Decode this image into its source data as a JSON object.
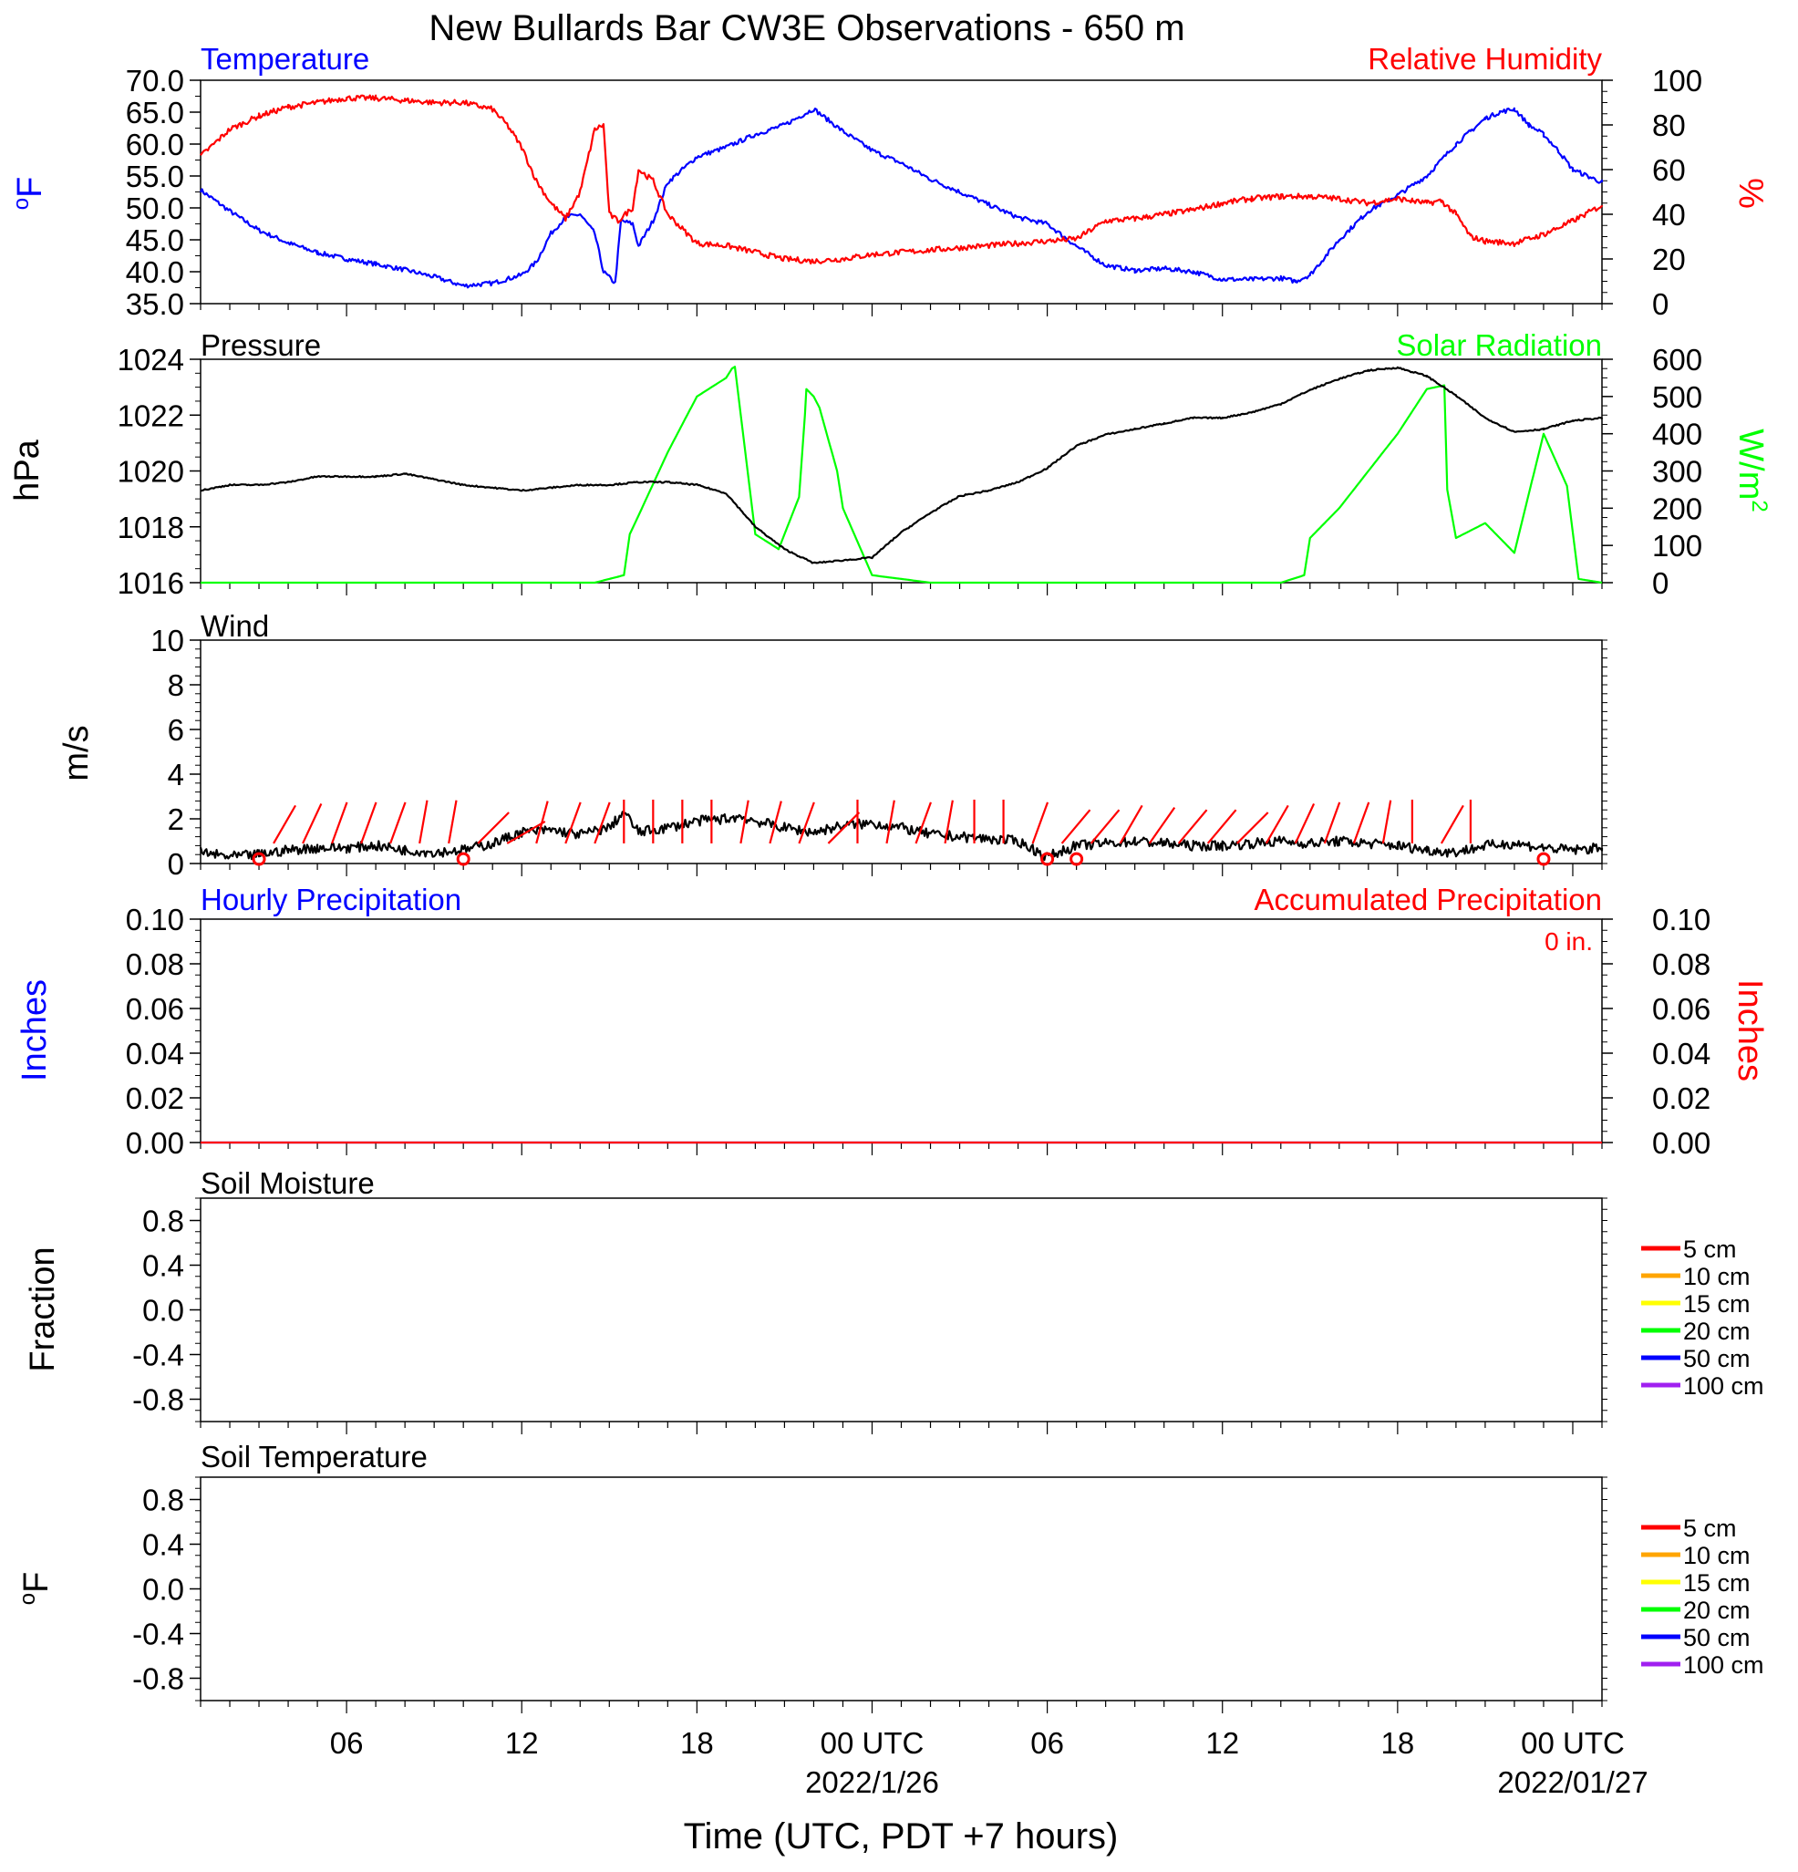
{
  "title": "New Bullards Bar CW3E Observations - 650 m",
  "x_axis": {
    "label": "Time (UTC, PDT +7 hours)",
    "ticks": [
      "06",
      "12",
      "18",
      "00 UTC",
      "06",
      "12",
      "18",
      "00 UTC"
    ],
    "dates": [
      "2022/1/26",
      "2022/01/27"
    ]
  },
  "colors": {
    "temperature": "#0000ff",
    "humidity": "#ff0000",
    "pressure": "#000000",
    "solar": "#00ff00",
    "wind": "#000000",
    "barbs": "#ff0000",
    "hourly_precip": "#0000ff",
    "accum_precip": "#ff0000"
  },
  "chart_data": [
    {
      "type": "line",
      "id": "temp_rh",
      "title_left": "Temperature",
      "title_right": "Relative Humidity",
      "ylabel_left": "oF",
      "ylabel_right": "%",
      "ylim_left": [
        35,
        70
      ],
      "ylim_right": [
        0,
        100
      ],
      "yticks_left": [
        "70.0",
        "65.0",
        "60.0",
        "55.0",
        "50.0",
        "45.0",
        "40.0",
        "35.0"
      ],
      "yticks_right": [
        "100",
        "80",
        "60",
        "40",
        "20",
        "0"
      ],
      "xlim_hours": [
        1,
        49
      ],
      "series": [
        {
          "name": "Temperature",
          "axis": "left",
          "color": "#0000ff",
          "x": [
            1,
            2,
            3,
            4,
            5,
            6,
            7,
            8,
            9,
            10,
            11,
            12,
            12.5,
            13,
            13.5,
            14,
            14.5,
            14.8,
            15.2,
            15.4,
            15.8,
            16,
            16.5,
            17,
            18,
            19,
            20,
            21,
            22,
            23,
            24,
            25,
            26,
            27,
            28,
            29,
            30,
            31,
            32,
            33,
            34,
            35,
            36,
            37,
            38,
            38.5,
            39,
            40,
            41,
            42,
            43,
            44,
            44.5,
            45,
            45.5,
            46,
            46.5,
            47,
            47.5,
            48,
            49
          ],
          "y": [
            52.8,
            49.5,
            46.5,
            44.5,
            43,
            42,
            41.2,
            40.3,
            39.2,
            37.8,
            38.2,
            39.5,
            41.5,
            46,
            48.5,
            49,
            46,
            40,
            38.2,
            48,
            47.5,
            44,
            48,
            54,
            58,
            59.5,
            61.5,
            63,
            65.5,
            62,
            59,
            57,
            54.5,
            52.5,
            50.5,
            48.5,
            47.5,
            44,
            41,
            40.2,
            40.5,
            40,
            38.8,
            38.8,
            39,
            38.5,
            39.5,
            45,
            49.5,
            52,
            55,
            60,
            62,
            64,
            65,
            65.5,
            63,
            61.5,
            59,
            56,
            54
          ]
        },
        {
          "name": "Relative Humidity",
          "axis": "right",
          "color": "#ff0000",
          "x": [
            1,
            1.5,
            2,
            3,
            4,
            5,
            6,
            7,
            8,
            9,
            10,
            11,
            11.5,
            12,
            12.5,
            13,
            13.5,
            14,
            14.5,
            14.8,
            15,
            15.3,
            15.8,
            16,
            16.5,
            17,
            18,
            19,
            20,
            21,
            22,
            23,
            24,
            25,
            26,
            27,
            28,
            29,
            30,
            31,
            32,
            33,
            34,
            35,
            36,
            37,
            38,
            39,
            40,
            41,
            42,
            42.5,
            43,
            43.5,
            44,
            44.5,
            45,
            46,
            47,
            48,
            49
          ],
          "y": [
            66,
            72,
            78,
            84,
            88,
            90,
            92,
            92,
            91,
            90,
            90,
            87,
            80,
            70,
            55,
            45,
            38,
            50,
            78,
            80,
            40,
            37,
            43,
            60,
            55,
            40,
            27,
            26,
            23,
            20,
            19,
            20,
            22,
            23,
            24,
            25,
            26,
            27,
            28,
            29,
            37,
            38,
            40,
            42,
            45,
            47,
            48,
            48,
            47,
            45,
            47,
            46,
            45,
            46,
            40,
            30,
            28,
            27,
            31,
            37,
            44
          ]
        }
      ]
    },
    {
      "type": "line",
      "id": "pres_solar",
      "title_left": "Pressure",
      "title_right": "Solar Radiation",
      "ylabel_left": "hPa",
      "ylabel_right": "W/m2",
      "ylim_left": [
        1016,
        1024
      ],
      "ylim_right": [
        0,
        600
      ],
      "yticks_left": [
        "1024",
        "1022",
        "1020",
        "1018",
        "1016"
      ],
      "yticks_right": [
        "600",
        "500",
        "400",
        "300",
        "200",
        "100",
        "0"
      ],
      "xlim_hours": [
        1,
        49
      ],
      "series": [
        {
          "name": "Pressure",
          "axis": "left",
          "color": "#000000",
          "x": [
            1,
            2,
            3,
            4,
            5,
            6,
            7,
            8,
            9,
            10,
            11,
            12,
            13,
            14,
            15,
            16,
            17,
            18,
            19,
            20,
            21,
            22,
            23,
            24,
            25,
            26,
            27,
            28,
            29,
            30,
            31,
            32,
            33,
            34,
            35,
            36,
            37,
            38,
            39,
            40,
            41,
            42,
            43,
            44,
            45,
            46,
            47,
            48,
            49
          ],
          "y": [
            1019.3,
            1019.5,
            1019.5,
            1019.6,
            1019.8,
            1019.8,
            1019.8,
            1019.9,
            1019.7,
            1019.5,
            1019.4,
            1019.3,
            1019.4,
            1019.5,
            1019.5,
            1019.6,
            1019.6,
            1019.5,
            1019.2,
            1018.0,
            1017.2,
            1016.7,
            1016.8,
            1016.9,
            1017.8,
            1018.5,
            1019.1,
            1019.3,
            1019.6,
            1020.1,
            1020.9,
            1021.3,
            1021.5,
            1021.7,
            1021.9,
            1021.9,
            1022.1,
            1022.4,
            1022.9,
            1023.3,
            1023.6,
            1023.7,
            1023.4,
            1022.7,
            1021.9,
            1021.4,
            1021.5,
            1021.8,
            1021.9
          ]
        },
        {
          "name": "Solar Radiation",
          "axis": "right",
          "color": "#00ff00",
          "x": [
            1,
            14.5,
            15.5,
            15.7,
            16,
            17,
            18,
            19,
            19.2,
            19.3,
            20,
            20.8,
            21.5,
            21.7,
            21.75,
            22,
            22.2,
            22.8,
            23,
            24,
            26,
            38,
            38.8,
            39,
            40,
            42,
            43,
            43.6,
            43.7,
            44,
            45,
            46,
            47,
            47.8,
            48.2,
            49
          ],
          "y": [
            0,
            0,
            20,
            130,
            180,
            350,
            500,
            550,
            575,
            580,
            130,
            90,
            230,
            450,
            520,
            500,
            470,
            300,
            200,
            20,
            0,
            0,
            20,
            120,
            200,
            400,
            520,
            530,
            250,
            120,
            160,
            80,
            400,
            260,
            10,
            0
          ]
        }
      ]
    },
    {
      "type": "line",
      "id": "wind",
      "title_left": "Wind",
      "ylabel_left": "m/s",
      "ylim_left": [
        0,
        10
      ],
      "yticks_left": [
        "10",
        "8",
        "6",
        "4",
        "2",
        "0"
      ],
      "xlim_hours": [
        1,
        49
      ],
      "series": [
        {
          "name": "Wind",
          "axis": "left",
          "color": "#000000",
          "x": [
            1,
            2,
            3,
            4,
            5,
            6,
            7,
            8,
            9,
            10,
            11,
            12,
            13,
            14,
            15,
            15.5,
            16,
            17,
            18,
            19,
            19.5,
            20,
            21,
            22,
            23,
            24,
            25,
            26,
            27,
            28,
            29,
            30,
            31,
            32,
            33,
            34,
            35,
            36,
            37,
            38,
            39,
            40,
            41,
            42,
            43,
            44,
            45,
            46,
            47,
            48,
            49
          ],
          "y": [
            0.5,
            0.3,
            0.4,
            0.6,
            0.7,
            0.7,
            0.8,
            0.6,
            0.5,
            0.6,
            0.9,
            1.4,
            1.5,
            1.3,
            1.6,
            2.3,
            1.4,
            1.6,
            1.9,
            2.0,
            2.1,
            1.9,
            1.6,
            1.4,
            1.7,
            1.8,
            1.6,
            1.3,
            1.2,
            1.1,
            1.0,
            0.3,
            0.8,
            0.9,
            1.0,
            0.9,
            0.8,
            0.8,
            0.9,
            1.0,
            0.9,
            1.0,
            0.9,
            0.8,
            0.6,
            0.5,
            0.8,
            0.9,
            0.7,
            0.6,
            0.7
          ]
        }
      ],
      "barbs": {
        "color": "#ff0000",
        "x": [
          3.5,
          4.5,
          5.5,
          6.5,
          7.5,
          8.5,
          9.5,
          10.5,
          11.5,
          12.5,
          13.5,
          14.5,
          15.5,
          16.5,
          17.5,
          18.5,
          19.5,
          20.5,
          21.5,
          22.5,
          23.5,
          24.5,
          25.5,
          26.5,
          27.5,
          28.5,
          29.5,
          30.5,
          31.5,
          32.5,
          33.5,
          34.5,
          35.5,
          36.5,
          37.5,
          38.5,
          39.5,
          40.5,
          41.5,
          42.5,
          43.5,
          44.5,
          45.5,
          46.5,
          47.5
        ],
        "dir_deg": [
          150,
          155,
          160,
          160,
          160,
          170,
          170,
          135,
          120,
          165,
          160,
          160,
          180,
          180,
          180,
          180,
          170,
          165,
          160,
          135,
          180,
          170,
          160,
          170,
          180,
          180,
          160,
          140,
          140,
          150,
          145,
          140,
          140,
          135,
          150,
          155,
          160,
          160,
          170,
          180,
          150,
          180,
          0,
          0,
          0
        ]
      },
      "calm_markers": [
        {
          "x": 3
        },
        {
          "x": 10
        },
        {
          "x": 30
        },
        {
          "x": 31
        },
        {
          "x": 47
        }
      ]
    },
    {
      "type": "line",
      "id": "precip",
      "title_left": "Hourly Precipitation",
      "title_right": "Accumulated Precipitation",
      "annotation": "0 in.",
      "ylabel_left": "Inches",
      "ylabel_right": "Inches",
      "ylim_left": [
        0,
        0.1
      ],
      "ylim_right": [
        0,
        0.1
      ],
      "yticks_left": [
        "0.10",
        "0.08",
        "0.06",
        "0.04",
        "0.02",
        "0.00"
      ],
      "yticks_right": [
        "0.10",
        "0.08",
        "0.06",
        "0.04",
        "0.02",
        "0.00"
      ],
      "xlim_hours": [
        1,
        49
      ],
      "series": [
        {
          "name": "Hourly Precipitation",
          "axis": "left",
          "color": "#0000ff",
          "x": [
            1,
            49
          ],
          "y": [
            0,
            0
          ]
        },
        {
          "name": "Accumulated Precipitation",
          "axis": "right",
          "color": "#ff0000",
          "x": [
            1,
            49
          ],
          "y": [
            0,
            0
          ]
        }
      ]
    },
    {
      "type": "line",
      "id": "soil_moisture",
      "title_left": "Soil Moisture",
      "ylabel_left": "Fraction",
      "ylim_left": [
        -1,
        1
      ],
      "yticks_left": [
        "0.8",
        "0.4",
        "0.0",
        "-0.4",
        "-0.8"
      ],
      "legend": [
        {
          "name": "5 cm",
          "color": "#ff0000"
        },
        {
          "name": "10 cm",
          "color": "#ffa500"
        },
        {
          "name": "15 cm",
          "color": "#ffff00"
        },
        {
          "name": "20 cm",
          "color": "#00ff00"
        },
        {
          "name": "50 cm",
          "color": "#0000ff"
        },
        {
          "name": "100 cm",
          "color": "#a020f0"
        }
      ],
      "series": []
    },
    {
      "type": "line",
      "id": "soil_temp",
      "title_left": "Soil Temperature",
      "ylabel_left": "oF",
      "ylim_left": [
        -1,
        1
      ],
      "yticks_left": [
        "0.8",
        "0.4",
        "0.0",
        "-0.4",
        "-0.8"
      ],
      "legend": [
        {
          "name": "5 cm",
          "color": "#ff0000"
        },
        {
          "name": "10 cm",
          "color": "#ffa500"
        },
        {
          "name": "15 cm",
          "color": "#ffff00"
        },
        {
          "name": "20 cm",
          "color": "#00ff00"
        },
        {
          "name": "50 cm",
          "color": "#0000ff"
        },
        {
          "name": "100 cm",
          "color": "#a020f0"
        }
      ],
      "series": []
    }
  ]
}
